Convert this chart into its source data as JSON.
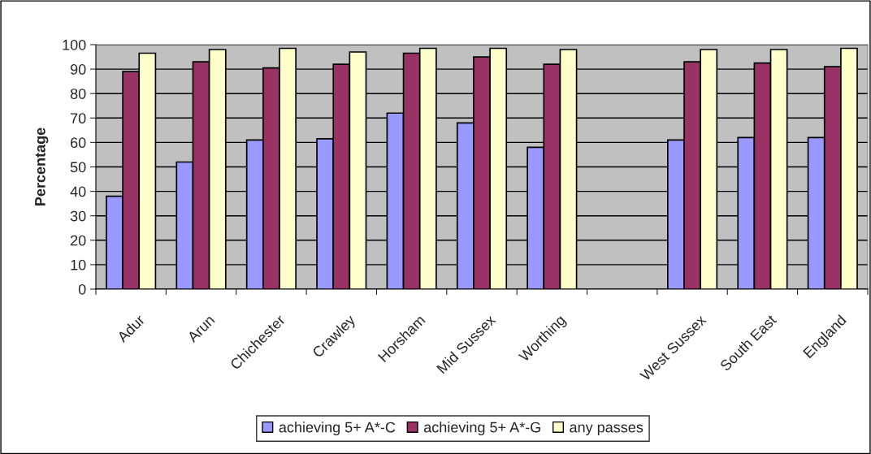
{
  "chart_data": {
    "type": "bar",
    "ylabel": "Percentage",
    "categories": [
      "Adur",
      "Arun",
      "Chichester",
      "Crawley",
      "Horsham",
      "Mid Sussex",
      "Worthing",
      null,
      "West Sussex",
      "South East",
      "England"
    ],
    "series": [
      {
        "name": "achieving 5+ A*-C",
        "color": "#9999ff",
        "values": [
          38,
          52,
          61,
          61.5,
          72,
          68,
          58,
          null,
          61,
          62,
          62
        ]
      },
      {
        "name": "achieving 5+ A*-G",
        "color": "#993366",
        "values": [
          89,
          93,
          90.5,
          92,
          96.5,
          95,
          92,
          null,
          93,
          92.5,
          91
        ]
      },
      {
        "name": "any passes",
        "color": "#ffffcc",
        "values": [
          96.5,
          98,
          98.5,
          97,
          98.5,
          98.5,
          98,
          null,
          98,
          98,
          98.5
        ]
      }
    ],
    "ylim": [
      0,
      100
    ],
    "yticks": [
      0,
      10,
      20,
      30,
      40,
      50,
      60,
      70,
      80,
      90,
      100
    ],
    "grid": "y",
    "legend": "bottom"
  }
}
